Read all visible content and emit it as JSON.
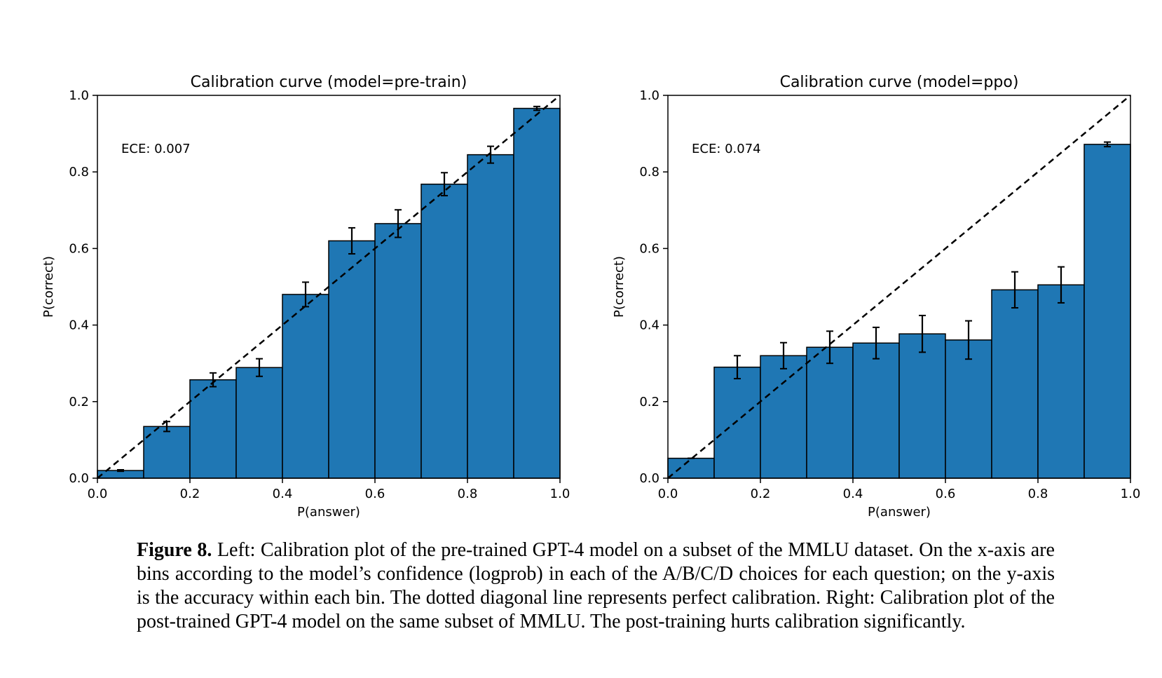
{
  "chart_data": [
    {
      "type": "bar",
      "title": "Calibration curve (model=pre-train)",
      "xlabel": "P(answer)",
      "ylabel": "P(correct)",
      "xlim": [
        0.0,
        1.0
      ],
      "ylim": [
        0.0,
        1.0
      ],
      "xticks": [
        "0.0",
        "0.2",
        "0.4",
        "0.6",
        "0.8",
        "1.0"
      ],
      "yticks": [
        "0.0",
        "0.2",
        "0.4",
        "0.6",
        "0.8",
        "1.0"
      ],
      "annotation": "ECE: 0.007",
      "bin_edges": [
        0.0,
        0.1,
        0.2,
        0.3,
        0.4,
        0.5,
        0.6,
        0.7,
        0.8,
        0.9,
        1.0
      ],
      "values": [
        0.02,
        0.135,
        0.257,
        0.289,
        0.48,
        0.62,
        0.665,
        0.768,
        0.845,
        0.966
      ],
      "errors": [
        0.002,
        0.013,
        0.018,
        0.023,
        0.032,
        0.034,
        0.036,
        0.03,
        0.022,
        0.005
      ],
      "reference_line": "perfect calibration diagonal (dashed)",
      "bar_color": "#1f77b4"
    },
    {
      "type": "bar",
      "title": "Calibration curve (model=ppo)",
      "xlabel": "P(answer)",
      "ylabel": "P(correct)",
      "xlim": [
        0.0,
        1.0
      ],
      "ylim": [
        0.0,
        1.0
      ],
      "xticks": [
        "0.0",
        "0.2",
        "0.4",
        "0.6",
        "0.8",
        "1.0"
      ],
      "yticks": [
        "0.0",
        "0.2",
        "0.4",
        "0.6",
        "0.8",
        "1.0"
      ],
      "annotation": "ECE: 0.074",
      "bin_edges": [
        0.0,
        0.1,
        0.2,
        0.3,
        0.4,
        0.5,
        0.6,
        0.7,
        0.8,
        0.9,
        1.0
      ],
      "values": [
        0.052,
        0.29,
        0.32,
        0.342,
        0.353,
        0.377,
        0.361,
        0.492,
        0.505,
        0.872
      ],
      "errors": [
        0.0,
        0.03,
        0.034,
        0.042,
        0.041,
        0.048,
        0.05,
        0.047,
        0.047,
        0.006
      ],
      "reference_line": "perfect calibration diagonal (dashed)",
      "bar_color": "#1f77b4"
    }
  ],
  "caption": {
    "label": "Figure 8.",
    "text": " Left: Calibration plot of the pre-trained GPT-4 model on a subset of the MMLU dataset. On the x-axis are bins according to the model’s confidence (logprob) in each of the A/B/C/D choices for each question; on the y-axis is the accuracy within each bin. The dotted diagonal line represents perfect calibration. Right: Calibration plot of the post-trained GPT-4 model on the same subset of MMLU. The post-training hurts calibration significantly."
  }
}
